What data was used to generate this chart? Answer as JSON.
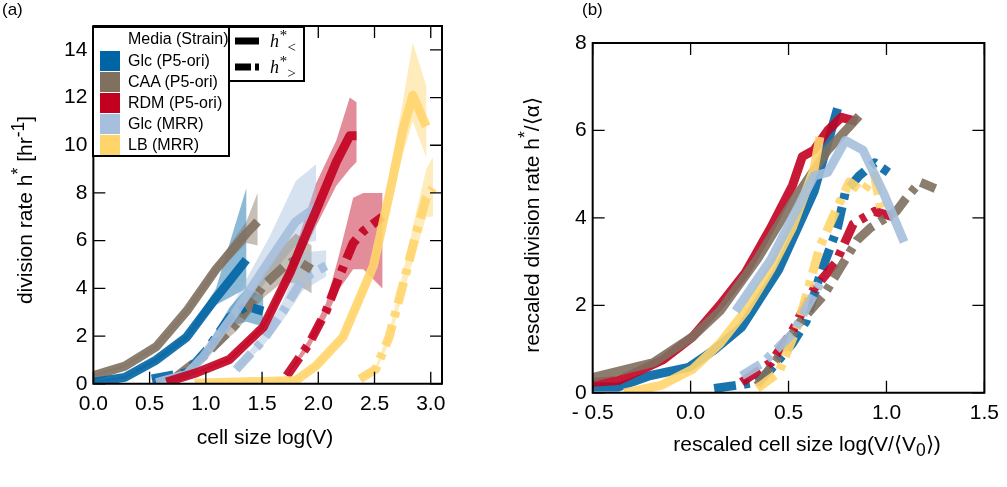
{
  "chart_data": [
    {
      "type": "line",
      "title": "(a)",
      "xlabel": "cell size  log(V)",
      "ylabel": "division rate  h$^{*}$ [hr$^{-1}$]",
      "xlim": [
        0,
        3.1
      ],
      "ylim": [
        0,
        15
      ],
      "xticks": [
        {
          "value": 0,
          "label": "0.0"
        },
        0.5,
        {
          "value": 1,
          "label": "1.0"
        },
        1.5,
        {
          "value": 2,
          "label": "2.0"
        },
        2.5,
        {
          "value": 3,
          "label": "3.0"
        }
      ],
      "yticks": [
        0,
        2,
        4,
        6,
        8,
        10,
        12,
        14
      ],
      "legend": "top left",
      "legend_title": "Media (Strain)",
      "annotations": [
        "h$^{*}$$_{<}$",
        "h$^{*}$$_{>}$"
      ],
      "series": [
        {
          "name": "Glc (P5-ori)",
          "color": "#0065a4",
          "line_style": "solid",
          "x": [
            0,
            0.28,
            0.56,
            0.83,
            1.09,
            1.36
          ],
          "values": [
            0.07,
            0.27,
            1.0,
            1.96,
            3.6,
            5.2
          ],
          "lower": [
            0.05,
            0.22,
            0.9,
            1.85,
            3.3,
            4.0
          ],
          "upper": [
            0.1,
            0.32,
            1.1,
            2.1,
            4.0,
            8.2
          ]
        },
        {
          "name": "CAA (P5-ori)",
          "color": "#7f705f",
          "line_style": "solid",
          "x": [
            0,
            0.28,
            0.56,
            0.83,
            1.09,
            1.36,
            1.46
          ],
          "values": [
            0.34,
            0.74,
            1.56,
            3.05,
            4.8,
            6.3,
            6.8
          ],
          "lower": [
            0.3,
            0.7,
            1.5,
            2.95,
            4.6,
            5.9,
            5.8
          ],
          "upper": [
            0.4,
            0.8,
            1.65,
            3.15,
            5.0,
            6.8,
            8.0
          ]
        },
        {
          "name": "RDM (P5-ori)",
          "color": "#c20020",
          "line_style": "solid",
          "x": [
            0.65,
            0.92,
            1.21,
            1.51,
            1.75,
            1.98,
            2.16,
            2.28,
            2.34
          ],
          "values": [
            0.07,
            0.47,
            1.02,
            2.37,
            4.67,
            7.25,
            9.3,
            10.4,
            10.4
          ],
          "lower": [
            0.05,
            0.42,
            0.95,
            2.25,
            4.4,
            6.6,
            8.3,
            9.0,
            9.3
          ],
          "upper": [
            0.1,
            0.52,
            1.1,
            2.5,
            5.0,
            8.4,
            10.2,
            12.0,
            11.8
          ]
        },
        {
          "name": "Glc (MRR)",
          "color": "#a5bfdc",
          "line_style": "solid",
          "x": [
            0.56,
            0.83,
            0.98,
            1.27,
            1.57,
            1.8,
            1.98
          ],
          "values": [
            0.05,
            0.4,
            1.15,
            3.05,
            5.2,
            6.8,
            7.4
          ],
          "lower": [
            0,
            0.3,
            1.0,
            2.6,
            4.5,
            5.8,
            6.0
          ],
          "upper": [
            0.1,
            0.5,
            1.35,
            3.6,
            6.2,
            8.5,
            9.2
          ]
        },
        {
          "name": "LB (MRR)",
          "color": "#ffd56b",
          "line_style": "solid",
          "x": [
            0.9,
            1.8,
            1.98,
            2.22,
            2.49,
            2.63,
            2.75,
            2.84,
            2.96
          ],
          "values": [
            0.02,
            0.14,
            0.75,
            1.96,
            4.95,
            7.9,
            10.6,
            12.1,
            10.8
          ],
          "lower": [
            0,
            0.1,
            0.65,
            1.8,
            4.6,
            7.2,
            9.6,
            11.0,
            9.5
          ],
          "upper": [
            0.05,
            0.2,
            0.85,
            2.1,
            5.3,
            8.7,
            11.8,
            14.3,
            12.5
          ]
        },
        {
          "color": "#0065a4",
          "line_style": "dashed",
          "x": [
            0.52,
            0.83,
            1.01,
            1.21,
            1.36,
            1.51
          ],
          "values": [
            0.2,
            0.47,
            1.42,
            2.78,
            3.25,
            3.05
          ],
          "lower": [
            0.15,
            0.4,
            1.25,
            2.4,
            2.6,
            2.4
          ],
          "upper": [
            0.25,
            0.55,
            1.6,
            3.2,
            4.0,
            3.7
          ]
        },
        {
          "color": "#7f705f",
          "line_style": "dashed",
          "x": [
            0.74,
            0.86,
            0.98,
            1.27,
            1.51,
            1.69,
            1.8,
            1.94
          ],
          "values": [
            0.3,
            0.75,
            1.15,
            2.5,
            4.1,
            4.9,
            5.2,
            4.8
          ],
          "lower": [
            0.25,
            0.65,
            1.0,
            2.2,
            3.6,
            4.3,
            4.2,
            3.8
          ],
          "upper": [
            0.35,
            0.85,
            1.3,
            2.8,
            4.6,
            5.8,
            6.3,
            5.8
          ]
        },
        {
          "color": "#c20020",
          "line_style": "dashed",
          "x": [
            1.72,
            1.92,
            2.07,
            2.19,
            2.31,
            2.4,
            2.57
          ],
          "values": [
            0.34,
            1.7,
            3.05,
            4.54,
            5.9,
            6.4,
            7.0
          ],
          "lower": [
            0.3,
            1.5,
            2.8,
            4.0,
            4.8,
            4.8,
            4.0
          ],
          "upper": [
            0.4,
            1.9,
            3.4,
            5.5,
            7.8,
            8.0,
            8.0
          ]
        },
        {
          "color": "#a5bfdc",
          "line_style": "dashed",
          "x": [
            1.27,
            1.51,
            1.69,
            1.86,
            2.07
          ],
          "values": [
            0.6,
            1.83,
            3.05,
            4.4,
            4.95
          ],
          "lower": [
            0.5,
            1.6,
            2.7,
            3.9,
            4.5
          ],
          "upper": [
            0.7,
            2.1,
            3.5,
            5.5,
            5.6
          ]
        },
        {
          "color": "#ffd56b",
          "line_style": "dashed",
          "x": [
            2.37,
            2.51,
            2.63,
            2.75,
            2.87,
            2.96,
            3.02
          ],
          "values": [
            0.2,
            0.61,
            1.96,
            4.1,
            6.3,
            7.8,
            8.2
          ],
          "lower": [
            0.15,
            0.5,
            1.7,
            3.7,
            5.6,
            7.0,
            7.0
          ],
          "upper": [
            0.25,
            0.75,
            2.2,
            4.6,
            7.2,
            9.0,
            9.5
          ]
        }
      ]
    },
    {
      "type": "line",
      "title": "(b)",
      "xlabel": "rescaled cell size  log(V/⟨V$_{0}$⟩)",
      "ylabel": "rescaled division rate  h$^{*}$/⟨α⟩",
      "xlim": [
        -0.5,
        1.5
      ],
      "ylim": [
        0,
        8
      ],
      "xticks": [
        -0.5,
        {
          "value": 0,
          "label": "0.0"
        },
        0.5,
        {
          "value": 1,
          "label": "1.0"
        },
        1.5
      ],
      "yticks": [
        0,
        2,
        4,
        6,
        8
      ],
      "series": [
        {
          "color": "#a5bfdc",
          "line_style": "solid",
          "x": [
            0.23,
            0.41,
            0.63,
            0.7,
            0.79,
            0.88,
            0.99,
            1.09
          ],
          "values": [
            1.87,
            3.05,
            4.96,
            5.04,
            5.77,
            5.55,
            4.52,
            3.45
          ]
        },
        {
          "color": "#ffd56b",
          "line_style": "solid",
          "x": [
            -0.34,
            -0.15,
            0.01,
            0.15,
            0.28,
            0.41,
            0.52,
            0.63,
            0.66
          ],
          "values": [
            0,
            0.17,
            0.54,
            1.13,
            1.87,
            2.82,
            3.78,
            5.11,
            5.85
          ]
        },
        {
          "color": "#7f705f",
          "line_style": "solid",
          "x": [
            -0.5,
            -0.19,
            0.01,
            0.15,
            0.34,
            0.52,
            0.7,
            0.86
          ],
          "values": [
            0.35,
            0.69,
            1.28,
            1.87,
            3.05,
            4.37,
            5.55,
            6.33
          ]
        },
        {
          "color": "#c20020",
          "line_style": "solid",
          "x": [
            -0.5,
            -0.37,
            -0.14,
            0.01,
            0.15,
            0.28,
            0.41,
            0.52,
            0.57,
            0.63,
            0.7,
            0.77,
            0.85
          ],
          "values": [
            0.24,
            0.28,
            0.76,
            1.28,
            2.01,
            2.75,
            3.78,
            4.74,
            5.4,
            5.55,
            6.0,
            6.3,
            6.2
          ]
        },
        {
          "color": "#0065a4",
          "line_style": "solid",
          "x": [
            -0.5,
            -0.37,
            -0.21,
            -0.01,
            0.12,
            0.26,
            0.45,
            0.63,
            0.75
          ],
          "values": [
            0.13,
            0.13,
            0.39,
            0.58,
            0.98,
            1.5,
            2.82,
            4.6,
            6.5
          ]
        },
        {
          "color": "#a5bfdc",
          "line_style": "dashed",
          "x": [
            0.26,
            0.37,
            0.52,
            0.66
          ],
          "values": [
            0.39,
            0.69,
            1.35,
            2.5
          ]
        },
        {
          "color": "#ffd56b",
          "line_style": "dashed",
          "x": [
            0.34,
            0.45,
            0.55,
            0.66,
            0.74,
            0.81,
            0.88,
            0.94,
            0.97
          ],
          "values": [
            0.1,
            0.46,
            1.57,
            3.34,
            4.15,
            4.82,
            4.6,
            4.96,
            4.23
          ]
        },
        {
          "color": "#7f705f",
          "line_style": "dashed",
          "x": [
            0.34,
            0.45,
            0.55,
            0.68,
            0.77,
            0.85,
            0.92,
            1.05,
            1.1,
            1.17,
            1.25
          ],
          "values": [
            0.17,
            0.83,
            1.57,
            2.23,
            2.9,
            3.49,
            3.78,
            4.15,
            4.45,
            4.82,
            4.67
          ]
        },
        {
          "color": "#c20020",
          "line_style": "dashed",
          "x": [
            0.26,
            0.41,
            0.52,
            0.63,
            0.74,
            0.83,
            0.94,
            1.05
          ],
          "values": [
            0.24,
            0.69,
            1.42,
            2.38,
            2.97,
            3.86,
            4.15,
            4.0
          ]
        },
        {
          "color": "#0065a4",
          "line_style": "dashed",
          "x": [
            0.12,
            0.34,
            0.41,
            0.52,
            0.59,
            0.66,
            0.75,
            0.79,
            0.86,
            0.94,
            1.01
          ],
          "values": [
            0.1,
            0.24,
            0.54,
            1.13,
            1.64,
            2.68,
            3.78,
            4.59,
            4.96,
            5.26,
            5.04
          ]
        }
      ]
    }
  ]
}
